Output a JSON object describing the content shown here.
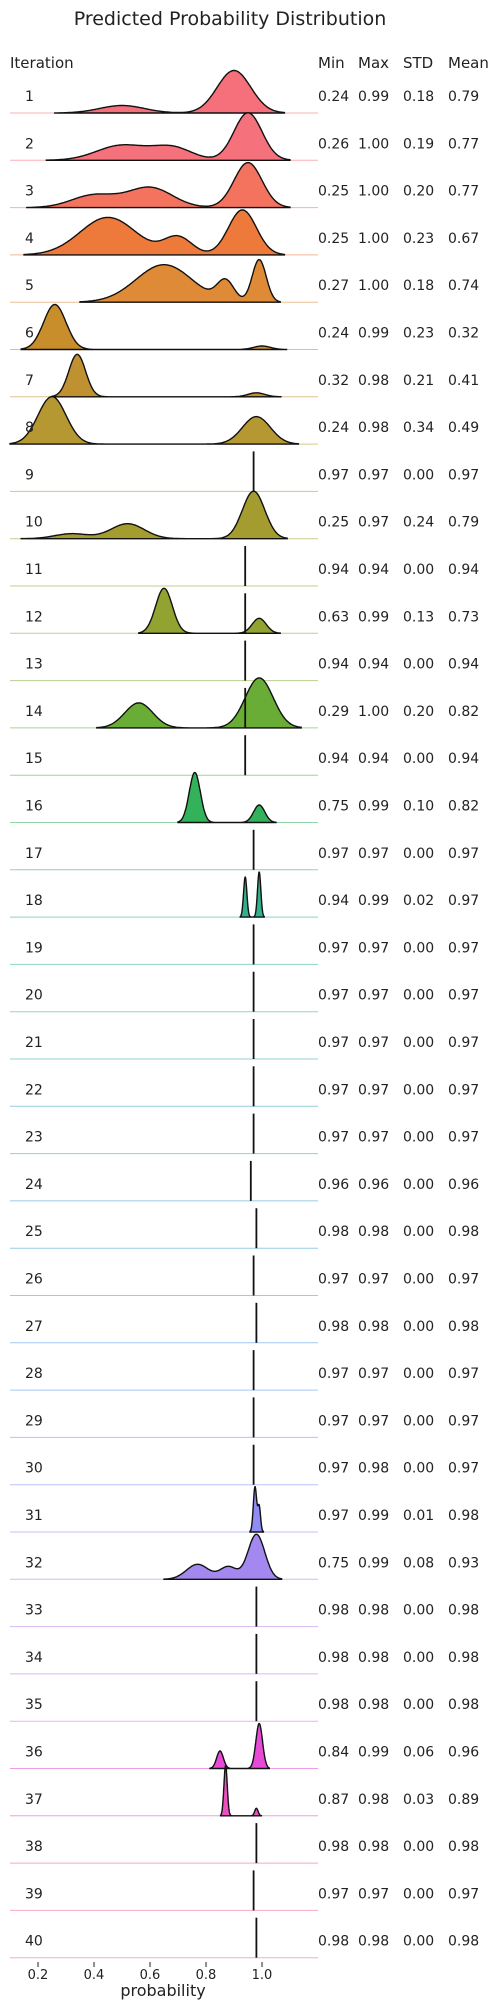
{
  "chart_data": {
    "type": "ridgeline",
    "title": "Predicted Probability Distribution",
    "xlabel": "probability",
    "xlim": [
      0.1,
      1.2
    ],
    "xticks": [
      0.2,
      0.4,
      0.6,
      0.8,
      1.0
    ],
    "xtick_labels": [
      "0.2",
      "0.4",
      "0.6",
      "0.8",
      "1.0"
    ],
    "row_header": "Iteration",
    "stat_headers": [
      "Min",
      "Max",
      "STD",
      "Mean"
    ],
    "rows": [
      {
        "label": "1",
        "min": "0.24",
        "max": "0.99",
        "std": "0.18",
        "mean": "0.79",
        "color": "#f5707a",
        "bumps": [
          [
            0.5,
            0.08,
            0.15
          ],
          [
            0.9,
            0.06,
            0.85
          ]
        ],
        "vline": null
      },
      {
        "label": "2",
        "min": "0.26",
        "max": "1.00",
        "std": "0.19",
        "mean": "0.77",
        "color": "#f5717b",
        "bumps": [
          [
            0.5,
            0.09,
            0.3
          ],
          [
            0.68,
            0.07,
            0.25
          ],
          [
            0.95,
            0.05,
            0.95
          ]
        ],
        "vline": null
      },
      {
        "label": "3",
        "min": "0.25",
        "max": "1.00",
        "std": "0.20",
        "mean": "0.77",
        "color": "#f3735e",
        "bumps": [
          [
            0.4,
            0.08,
            0.25
          ],
          [
            0.6,
            0.08,
            0.4
          ],
          [
            0.95,
            0.05,
            0.9
          ]
        ],
        "vline": null
      },
      {
        "label": "4",
        "min": "0.25",
        "max": "1.00",
        "std": "0.23",
        "mean": "0.67",
        "color": "#ed7a3a",
        "bumps": [
          [
            0.45,
            0.1,
            0.75
          ],
          [
            0.7,
            0.05,
            0.35
          ],
          [
            0.93,
            0.05,
            0.9
          ]
        ],
        "vline": null
      },
      {
        "label": "5",
        "min": "0.27",
        "max": "1.00",
        "std": "0.18",
        "mean": "0.74",
        "color": "#de8a36",
        "bumps": [
          [
            0.65,
            0.1,
            0.75
          ],
          [
            0.87,
            0.03,
            0.4
          ],
          [
            0.99,
            0.025,
            0.85
          ]
        ],
        "vline": null
      },
      {
        "label": "6",
        "min": "0.24",
        "max": "0.99",
        "std": "0.23",
        "mean": "0.32",
        "color": "#c98e2c",
        "bumps": [
          [
            0.26,
            0.04,
            0.9
          ],
          [
            1.0,
            0.03,
            0.07
          ]
        ],
        "vline": null
      },
      {
        "label": "7",
        "min": "0.32",
        "max": "0.98",
        "std": "0.21",
        "mean": "0.41",
        "color": "#bf9130",
        "bumps": [
          [
            0.34,
            0.03,
            0.85
          ],
          [
            0.98,
            0.03,
            0.08
          ]
        ],
        "vline": null
      },
      {
        "label": "8",
        "min": "0.24",
        "max": "0.98",
        "std": "0.34",
        "mean": "0.49",
        "color": "#b59832",
        "bumps": [
          [
            0.25,
            0.05,
            0.95
          ],
          [
            0.98,
            0.05,
            0.55
          ]
        ],
        "vline": null
      },
      {
        "label": "9",
        "min": "0.97",
        "max": "0.97",
        "std": "0.00",
        "mean": "0.97",
        "color": "#a39c2f",
        "bumps": [],
        "vline": 0.97
      },
      {
        "label": "10",
        "min": "0.25",
        "max": "0.97",
        "std": "0.24",
        "mean": "0.79",
        "color": "#a49c2e",
        "bumps": [
          [
            0.32,
            0.06,
            0.1
          ],
          [
            0.52,
            0.06,
            0.3
          ],
          [
            0.97,
            0.04,
            0.95
          ]
        ],
        "vline": null
      },
      {
        "label": "11",
        "min": "0.94",
        "max": "0.94",
        "std": "0.00",
        "mean": "0.94",
        "color": "#9aa22f",
        "bumps": [],
        "vline": 0.94
      },
      {
        "label": "12",
        "min": "0.63",
        "max": "0.99",
        "std": "0.13",
        "mean": "0.73",
        "color": "#93a331",
        "bumps": [
          [
            0.65,
            0.03,
            0.9
          ],
          [
            0.99,
            0.025,
            0.3
          ]
        ],
        "vline": 0.94
      },
      {
        "label": "13",
        "min": "0.94",
        "max": "0.94",
        "std": "0.00",
        "mean": "0.94",
        "color": "#84a930",
        "bumps": [],
        "vline": 0.94
      },
      {
        "label": "14",
        "min": "0.29",
        "max": "1.00",
        "std": "0.20",
        "mean": "0.82",
        "color": "#6aad36",
        "bumps": [
          [
            0.56,
            0.05,
            0.5
          ],
          [
            0.99,
            0.05,
            1.0
          ]
        ],
        "vline": 0.94
      },
      {
        "label": "15",
        "min": "0.94",
        "max": "0.94",
        "std": "0.00",
        "mean": "0.94",
        "color": "#4cb046",
        "bumps": [],
        "vline": 0.94
      },
      {
        "label": "16",
        "min": "0.75",
        "max": "0.99",
        "std": "0.10",
        "mean": "0.82",
        "color": "#33b15b",
        "bumps": [
          [
            0.76,
            0.02,
            1.0
          ],
          [
            0.99,
            0.02,
            0.35
          ]
        ],
        "vline": null
      },
      {
        "label": "17",
        "min": "0.97",
        "max": "0.97",
        "std": "0.00",
        "mean": "0.97",
        "color": "#34b07a",
        "bumps": [],
        "vline": 0.97
      },
      {
        "label": "18",
        "min": "0.94",
        "max": "0.99",
        "std": "0.02",
        "mean": "0.97",
        "color": "#33af8d",
        "bumps": [
          [
            0.94,
            0.006,
            0.8
          ],
          [
            0.99,
            0.006,
            0.9
          ]
        ],
        "vline": null
      },
      {
        "label": "19",
        "min": "0.97",
        "max": "0.97",
        "std": "0.00",
        "mean": "0.97",
        "color": "#35ae9b",
        "bumps": [],
        "vline": 0.97
      },
      {
        "label": "20",
        "min": "0.97",
        "max": "0.97",
        "std": "0.00",
        "mean": "0.97",
        "color": "#36aea6",
        "bumps": [],
        "vline": 0.97
      },
      {
        "label": "21",
        "min": "0.97",
        "max": "0.97",
        "std": "0.00",
        "mean": "0.97",
        "color": "#37adb0",
        "bumps": [],
        "vline": 0.97
      },
      {
        "label": "22",
        "min": "0.97",
        "max": "0.97",
        "std": "0.00",
        "mean": "0.97",
        "color": "#38acb9",
        "bumps": [],
        "vline": 0.97
      },
      {
        "label": "23",
        "min": "0.97",
        "max": "0.97",
        "std": "0.00",
        "mean": "0.97",
        "color": "#3aabc2",
        "bumps": [],
        "vline": 0.97
      },
      {
        "label": "24",
        "min": "0.96",
        "max": "0.96",
        "std": "0.00",
        "mean": "0.96",
        "color": "#3ca9cb",
        "bumps": [],
        "vline": 0.96
      },
      {
        "label": "25",
        "min": "0.98",
        "max": "0.98",
        "std": "0.00",
        "mean": "0.98",
        "color": "#40a7d5",
        "bumps": [],
        "vline": 0.98
      },
      {
        "label": "26",
        "min": "0.97",
        "max": "0.97",
        "std": "0.00",
        "mean": "0.97",
        "color": "#46a4df",
        "bumps": [],
        "vline": 0.97
      },
      {
        "label": "27",
        "min": "0.98",
        "max": "0.98",
        "std": "0.00",
        "mean": "0.98",
        "color": "#4fa1e8",
        "bumps": [],
        "vline": 0.98
      },
      {
        "label": "28",
        "min": "0.97",
        "max": "0.97",
        "std": "0.00",
        "mean": "0.97",
        "color": "#5c9cf0",
        "bumps": [],
        "vline": 0.97
      },
      {
        "label": "29",
        "min": "0.97",
        "max": "0.97",
        "std": "0.00",
        "mean": "0.97",
        "color": "#6b97f4",
        "bumps": [],
        "vline": 0.97
      },
      {
        "label": "30",
        "min": "0.97",
        "max": "0.98",
        "std": "0.00",
        "mean": "0.97",
        "color": "#7c92f5",
        "bumps": [],
        "vline": 0.97
      },
      {
        "label": "31",
        "min": "0.97",
        "max": "0.99",
        "std": "0.01",
        "mean": "0.98",
        "color": "#8e8cf5",
        "bumps": [
          [
            0.975,
            0.006,
            0.9
          ],
          [
            0.99,
            0.005,
            0.5
          ]
        ],
        "vline": null
      },
      {
        "label": "32",
        "min": "0.75",
        "max": "0.99",
        "std": "0.08",
        "mean": "0.93",
        "color": "#a388f0",
        "bumps": [
          [
            0.77,
            0.04,
            0.3
          ],
          [
            0.88,
            0.03,
            0.25
          ],
          [
            0.98,
            0.03,
            0.9
          ]
        ],
        "vline": null
      },
      {
        "label": "33",
        "min": "0.98",
        "max": "0.98",
        "std": "0.00",
        "mean": "0.98",
        "color": "#b583ec",
        "bumps": [],
        "vline": 0.98
      },
      {
        "label": "34",
        "min": "0.98",
        "max": "0.98",
        "std": "0.00",
        "mean": "0.98",
        "color": "#c47ee8",
        "bumps": [],
        "vline": 0.98
      },
      {
        "label": "35",
        "min": "0.98",
        "max": "0.98",
        "std": "0.00",
        "mean": "0.98",
        "color": "#d477e4",
        "bumps": [],
        "vline": 0.98
      },
      {
        "label": "36",
        "min": "0.84",
        "max": "0.99",
        "std": "0.06",
        "mean": "0.96",
        "color": "#e84ad8",
        "bumps": [
          [
            0.85,
            0.012,
            0.35
          ],
          [
            0.99,
            0.012,
            0.9
          ]
        ],
        "vline": null
      },
      {
        "label": "37",
        "min": "0.87",
        "max": "0.98",
        "std": "0.03",
        "mean": "0.89",
        "color": "#ed4fc0",
        "bumps": [
          [
            0.87,
            0.006,
            1.0
          ],
          [
            0.98,
            0.006,
            0.15
          ]
        ],
        "vline": null
      },
      {
        "label": "38",
        "min": "0.98",
        "max": "0.98",
        "std": "0.00",
        "mean": "0.98",
        "color": "#f25aa8",
        "bumps": [],
        "vline": 0.98
      },
      {
        "label": "39",
        "min": "0.97",
        "max": "0.97",
        "std": "0.00",
        "mean": "0.97",
        "color": "#f5628f",
        "bumps": [],
        "vline": 0.97
      },
      {
        "label": "40",
        "min": "0.98",
        "max": "0.98",
        "std": "0.00",
        "mean": "0.98",
        "color": "#f7697f",
        "bumps": [],
        "vline": 0.98
      }
    ]
  }
}
